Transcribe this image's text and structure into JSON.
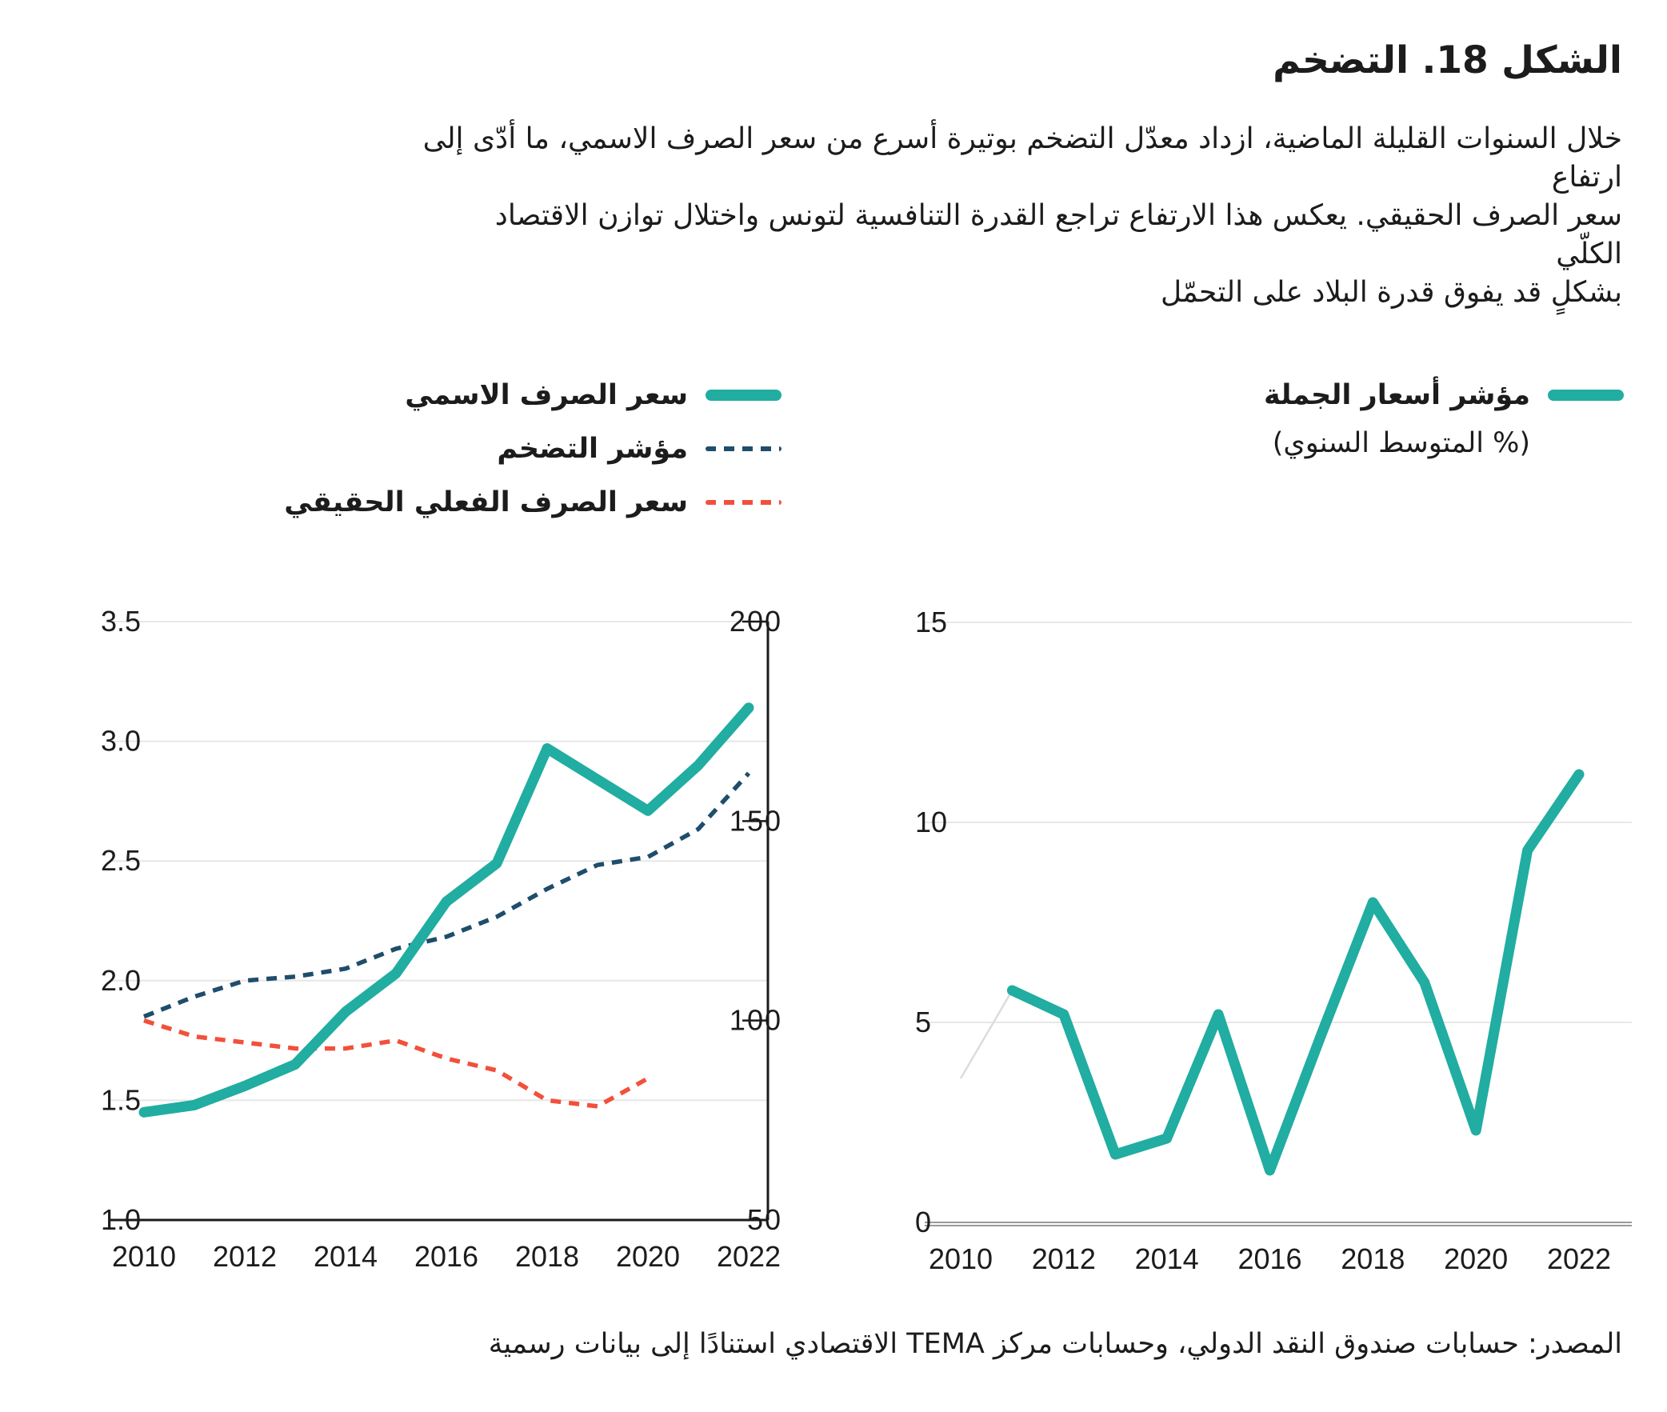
{
  "figure": {
    "title": "الشكل 18. التضخم",
    "description_lines": [
      "خلال السنوات القليلة الماضية، ازداد معدّل التضخم بوتيرة أسرع من سعر الصرف الاسمي، ما أدّى إلى ارتفاع",
      "سعر الصرف الحقيقي. يعكس هذا الارتفاع تراجع القدرة التنافسية لتونس واختلال توازن الاقتصاد الكلّي",
      "بشكلٍ قد يفوق قدرة البلاد على التحمّل"
    ],
    "source": "المصدر: حسابات صندوق النقد الدولي،  وحسابات مركز TEMA الاقتصادي استنادًا إلى بيانات رسمية"
  },
  "colors": {
    "teal": "#21ada1",
    "navy": "#1e4e6b",
    "red": "#f2503c",
    "grid": "#e7e7e7",
    "axis": "#1c1c1c",
    "baseline_gray": "#9a9a9a",
    "ghost": "#dcdcdc"
  },
  "legend_left": {
    "items": [
      {
        "label": "سعر الصرف الاسمي",
        "style": "solid",
        "color_key": "teal"
      },
      {
        "label": "مؤشر التضخم",
        "style": "dashed",
        "color_key": "navy"
      },
      {
        "label": "سعر الصرف الفعلي الحقيقي",
        "style": "dashed",
        "color_key": "red"
      }
    ]
  },
  "legend_right": {
    "label": "مؤشر أسعار الجملة",
    "sublabel": "(% المتوسط السنوي)",
    "style": "solid",
    "color_key": "teal"
  },
  "chart_data": [
    {
      "type": "line",
      "name": "exchange-rate-and-inflation",
      "x": [
        2010,
        2011,
        2012,
        2013,
        2014,
        2015,
        2016,
        2017,
        2018,
        2019,
        2020,
        2021,
        2022
      ],
      "x_tick_labels": [
        "2010",
        "2012",
        "2014",
        "2016",
        "2018",
        "2020",
        "2022"
      ],
      "left_axis": {
        "range": [
          1.0,
          3.5
        ],
        "ticks": [
          1.0,
          1.5,
          2.0,
          2.5,
          3.0,
          3.5
        ],
        "labels": [
          "1.0",
          "1.5",
          "2.0",
          "2.5",
          "3.0",
          "3.5"
        ]
      },
      "right_axis": {
        "range": [
          50,
          200
        ],
        "ticks": [
          50,
          100,
          150,
          200
        ],
        "labels": [
          "50",
          "100",
          "150",
          "200"
        ]
      },
      "grid": true,
      "series": [
        {
          "name": "سعر الصرف الاسمي",
          "axis": "left",
          "style": "solid",
          "color": "teal",
          "values": [
            1.45,
            1.48,
            1.56,
            1.65,
            1.87,
            2.03,
            2.33,
            2.49,
            2.97,
            2.84,
            2.71,
            2.9,
            3.14
          ]
        },
        {
          "name": "مؤشر التضخم",
          "axis": "right",
          "style": "dashed",
          "color": "navy",
          "values": [
            101,
            106,
            110,
            111,
            113,
            118,
            121,
            126,
            133,
            139,
            141,
            148,
            162
          ]
        },
        {
          "name": "سعر الصرف الفعلي الحقيقي",
          "axis": "right",
          "style": "dashed",
          "color": "red",
          "values": [
            100,
            96,
            94.5,
            93,
            93,
            95,
            90.5,
            87.5,
            80,
            78.5,
            85.5,
            null,
            null
          ]
        }
      ]
    },
    {
      "type": "line",
      "name": "wholesale-price-index",
      "x": [
        2010,
        2011,
        2012,
        2013,
        2014,
        2015,
        2016,
        2017,
        2018,
        2019,
        2020,
        2021,
        2022
      ],
      "x_tick_labels": [
        "2010",
        "2012",
        "2014",
        "2016",
        "2018",
        "2020",
        "2022"
      ],
      "y_axis": {
        "range": [
          0,
          15
        ],
        "ticks": [
          0,
          5,
          10,
          15
        ],
        "labels": [
          "0",
          "5",
          "10",
          "15"
        ]
      },
      "grid": true,
      "series": [
        {
          "name": "مؤشر أسعار الجملة",
          "style": "solid",
          "color": "teal",
          "values": [
            null,
            5.8,
            5.2,
            1.7,
            2.1,
            5.2,
            1.3,
            4.7,
            8.0,
            6.0,
            2.3,
            9.3,
            11.2
          ]
        }
      ],
      "ghost_segment": {
        "x": [
          2010,
          2011
        ],
        "y": [
          3.6,
          5.8
        ]
      }
    }
  ]
}
